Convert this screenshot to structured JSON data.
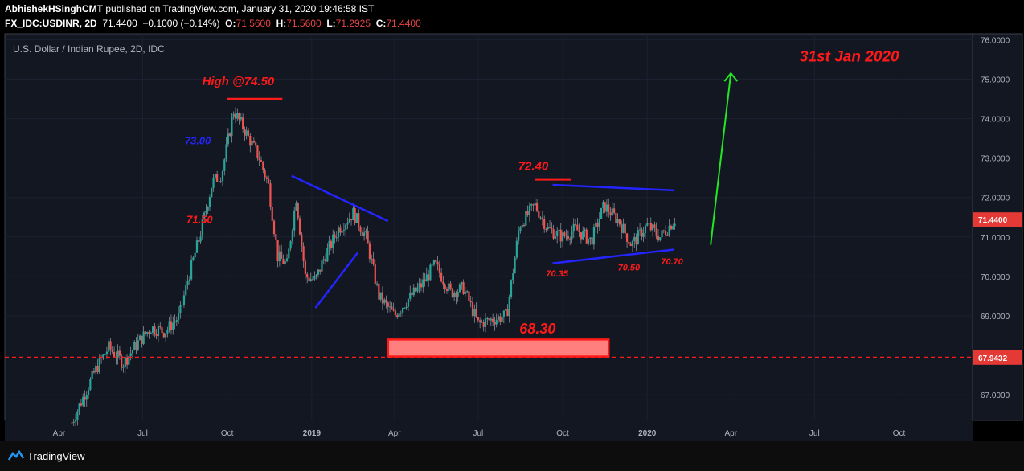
{
  "header": {
    "line1_user": "AbhishekHSinghCMT",
    "line1_rest": " published on TradingView.com, January 31, 2020 19:46:58 IST",
    "symbol": "FX_IDC:USDINR, 2D",
    "last": "71.4400",
    "change": "−0.1000 (−0.14%)",
    "o_label": "O:",
    "o_val": "71.5600",
    "h_label": "H:",
    "h_val": "71.5600",
    "l_label": "L:",
    "l_val": "71.2925",
    "c_label": "C:",
    "c_val": "71.4400"
  },
  "footer": {
    "brand": "TradingView"
  },
  "colors": {
    "background": "#131722",
    "up": "#26a69a",
    "down": "#ef5350",
    "annotation_red": "#ff1a1a",
    "trend_blue": "#2424ff",
    "arrow_green": "#22e822",
    "price_tag": "#e53935"
  },
  "chart_data": {
    "type": "candlestick",
    "title": "U.S. Dollar / Indian Rupee, 2D, IDC",
    "ylim": [
      66.35,
      76.15
    ],
    "y_ticks": [
      "67.0000",
      "69.0000",
      "70.0000",
      "71.0000",
      "72.0000",
      "73.0000",
      "74.0000",
      "75.0000",
      "76.0000"
    ],
    "x_ticks": [
      "Apr",
      "Jul",
      "Oct",
      "2019",
      "Apr",
      "Jul",
      "Oct",
      "2020",
      "Apr",
      "Jul",
      "Oct"
    ],
    "price_tags": [
      "71.4400",
      "67.9432"
    ],
    "support_level": 67.9432,
    "series": [
      {
        "name": "USDINR",
        "close_path": [
          [
            "2018-04-15",
            66.3
          ],
          [
            "2018-05-10",
            67.6
          ],
          [
            "2018-05-25",
            68.2
          ],
          [
            "2018-06-10",
            67.8
          ],
          [
            "2018-06-25",
            68.3
          ],
          [
            "2018-07-10",
            68.7
          ],
          [
            "2018-07-25",
            68.6
          ],
          [
            "2018-08-10",
            69.0
          ],
          [
            "2018-08-20",
            70.0
          ],
          [
            "2018-09-01",
            71.0
          ],
          [
            "2018-09-15",
            72.4
          ],
          [
            "2018-09-25",
            72.6
          ],
          [
            "2018-10-08",
            74.2
          ],
          [
            "2018-10-20",
            73.7
          ],
          [
            "2018-11-05",
            73.0
          ],
          [
            "2018-11-15",
            72.3
          ],
          [
            "2018-11-25",
            70.5
          ],
          [
            "2018-12-05",
            70.3
          ],
          [
            "2018-12-15",
            72.0
          ],
          [
            "2018-12-25",
            70.0
          ],
          [
            "2019-01-05",
            69.9
          ],
          [
            "2019-01-15",
            70.5
          ],
          [
            "2019-01-30",
            71.2
          ],
          [
            "2019-02-15",
            71.6
          ],
          [
            "2019-03-01",
            71.0
          ],
          [
            "2019-03-15",
            69.5
          ],
          [
            "2019-04-01",
            69.0
          ],
          [
            "2019-04-15",
            69.4
          ],
          [
            "2019-05-01",
            69.8
          ],
          [
            "2019-05-15",
            70.3
          ],
          [
            "2019-06-01",
            69.6
          ],
          [
            "2019-06-15",
            69.7
          ],
          [
            "2019-07-01",
            68.8
          ],
          [
            "2019-07-15",
            68.9
          ],
          [
            "2019-08-01",
            69.0
          ],
          [
            "2019-08-15",
            71.3
          ],
          [
            "2019-09-01",
            71.8
          ],
          [
            "2019-09-15",
            71.2
          ],
          [
            "2019-10-01",
            71.0
          ],
          [
            "2019-10-15",
            71.2
          ],
          [
            "2019-11-01",
            70.9
          ],
          [
            "2019-11-15",
            71.8
          ],
          [
            "2019-12-01",
            71.4
          ],
          [
            "2019-12-15",
            70.8
          ],
          [
            "2020-01-01",
            71.3
          ],
          [
            "2020-01-15",
            71.0
          ],
          [
            "2020-01-31",
            71.44
          ]
        ]
      }
    ],
    "annotations": [
      {
        "text": "High @74.50",
        "color": "annotation_red",
        "price": 74.5
      },
      {
        "text": "73.00",
        "color": "trend_blue"
      },
      {
        "text": "71.50",
        "color": "annotation_red"
      },
      {
        "text": "72.40",
        "color": "annotation_red",
        "price": 72.4
      },
      {
        "text": "68.30",
        "color": "annotation_red",
        "price": 68.3
      },
      {
        "text": "70.35",
        "color": "annotation_red",
        "price": 70.35
      },
      {
        "text": "70.50",
        "color": "annotation_red",
        "price": 70.5
      },
      {
        "text": "70.70",
        "color": "annotation_red",
        "price": 70.7
      },
      {
        "text": "31st Jan 2020",
        "color": "annotation_red"
      }
    ]
  }
}
